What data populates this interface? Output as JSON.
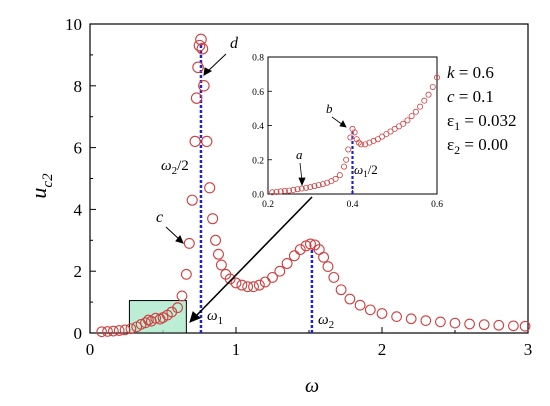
{
  "chart_data": [
    {
      "type": "scatter",
      "role": "main",
      "xlabel": "ω",
      "ylabel_main": "u",
      "ylabel_sub": "c2",
      "xlim": [
        0,
        3
      ],
      "ylim": [
        0,
        10
      ],
      "xticks": [
        0,
        1,
        2,
        3
      ],
      "yticks": [
        0,
        2,
        4,
        6,
        8,
        10
      ],
      "marker": "open-circle",
      "marker_color": "#d04040",
      "series": [
        {
          "values_x": [
            0.08,
            0.12,
            0.16,
            0.2,
            0.24,
            0.28,
            0.32,
            0.35,
            0.38,
            0.4,
            0.42,
            0.45,
            0.48,
            0.5,
            0.53,
            0.56,
            0.6,
            0.63,
            0.66,
            0.68,
            0.7,
            0.72,
            0.73,
            0.74,
            0.75,
            0.76,
            0.77,
            0.78,
            0.8,
            0.82,
            0.84,
            0.86,
            0.88,
            0.9,
            0.93,
            0.96,
            1.0,
            1.04,
            1.08,
            1.12,
            1.16,
            1.2,
            1.25,
            1.3,
            1.35,
            1.4,
            1.44,
            1.48,
            1.51,
            1.54,
            1.57,
            1.6,
            1.63,
            1.67,
            1.72,
            1.78,
            1.85,
            1.92,
            2.0,
            2.1,
            2.2,
            2.3,
            2.4,
            2.5,
            2.6,
            2.7,
            2.8,
            2.9,
            2.98
          ],
          "values_y": [
            0.04,
            0.05,
            0.06,
            0.08,
            0.1,
            0.14,
            0.2,
            0.28,
            0.33,
            0.42,
            0.38,
            0.48,
            0.45,
            0.5,
            0.58,
            0.68,
            0.82,
            1.2,
            1.9,
            2.9,
            4.3,
            6.2,
            7.6,
            8.6,
            9.3,
            9.5,
            9.2,
            8.0,
            6.2,
            4.7,
            3.7,
            3.0,
            2.55,
            2.2,
            1.9,
            1.75,
            1.62,
            1.55,
            1.5,
            1.5,
            1.55,
            1.65,
            1.8,
            2.0,
            2.25,
            2.5,
            2.7,
            2.82,
            2.88,
            2.85,
            2.7,
            2.45,
            2.15,
            1.8,
            1.4,
            1.1,
            0.9,
            0.75,
            0.63,
            0.53,
            0.46,
            0.4,
            0.36,
            0.32,
            0.29,
            0.27,
            0.25,
            0.23,
            0.22
          ]
        }
      ],
      "annotations": {
        "a": "a",
        "b": "b",
        "c": "c",
        "d": "d",
        "half_omega2": "ω",
        "half_omega2_sub": "2",
        "half_omega2_den": "/2",
        "omega1": "ω",
        "omega1_sub": "1",
        "omega2": "ω",
        "omega2_sub": "2",
        "half_omega1": "ω",
        "half_omega1_sub": "1",
        "half_omega1_den": "/2"
      },
      "dashed_lines_x": [
        0.76,
        1.52
      ],
      "highlight_box": {
        "x": [
          0.27,
          0.66
        ],
        "y": [
          0,
          1.05
        ]
      },
      "parameters": [
        {
          "name": "k",
          "value": " = 0.6",
          "italic": true
        },
        {
          "name": "c",
          "value": " = 0.1",
          "italic": true
        },
        {
          "name": "ε",
          "sub": "1",
          "value": " = 0.032",
          "italic": false
        },
        {
          "name": "ε",
          "sub": "2",
          "value": " = 0.00",
          "italic": false
        }
      ]
    },
    {
      "type": "scatter",
      "role": "inset",
      "xlim": [
        0.2,
        0.6
      ],
      "ylim": [
        0,
        0.8
      ],
      "xticks": [
        "0.2",
        "0.4",
        "0.6"
      ],
      "yticks": [
        "0.0",
        "0.2",
        "0.4",
        "0.6",
        "0.8"
      ],
      "dashed_line_x": 0.4,
      "series": [
        {
          "values_x": [
            0.21,
            0.22,
            0.23,
            0.24,
            0.25,
            0.26,
            0.27,
            0.28,
            0.29,
            0.3,
            0.31,
            0.32,
            0.33,
            0.34,
            0.35,
            0.36,
            0.37,
            0.38,
            0.385,
            0.39,
            0.395,
            0.4,
            0.405,
            0.41,
            0.415,
            0.42,
            0.43,
            0.44,
            0.45,
            0.46,
            0.47,
            0.48,
            0.49,
            0.5,
            0.51,
            0.52,
            0.53,
            0.54,
            0.55,
            0.56,
            0.57,
            0.58,
            0.59,
            0.6
          ],
          "values_y": [
            0.01,
            0.012,
            0.015,
            0.018,
            0.02,
            0.024,
            0.028,
            0.032,
            0.036,
            0.04,
            0.046,
            0.052,
            0.058,
            0.066,
            0.075,
            0.088,
            0.11,
            0.16,
            0.2,
            0.26,
            0.33,
            0.38,
            0.36,
            0.32,
            0.3,
            0.29,
            0.29,
            0.3,
            0.31,
            0.32,
            0.335,
            0.35,
            0.365,
            0.38,
            0.395,
            0.41,
            0.43,
            0.455,
            0.48,
            0.51,
            0.545,
            0.58,
            0.625,
            0.68
          ]
        }
      ]
    }
  ]
}
